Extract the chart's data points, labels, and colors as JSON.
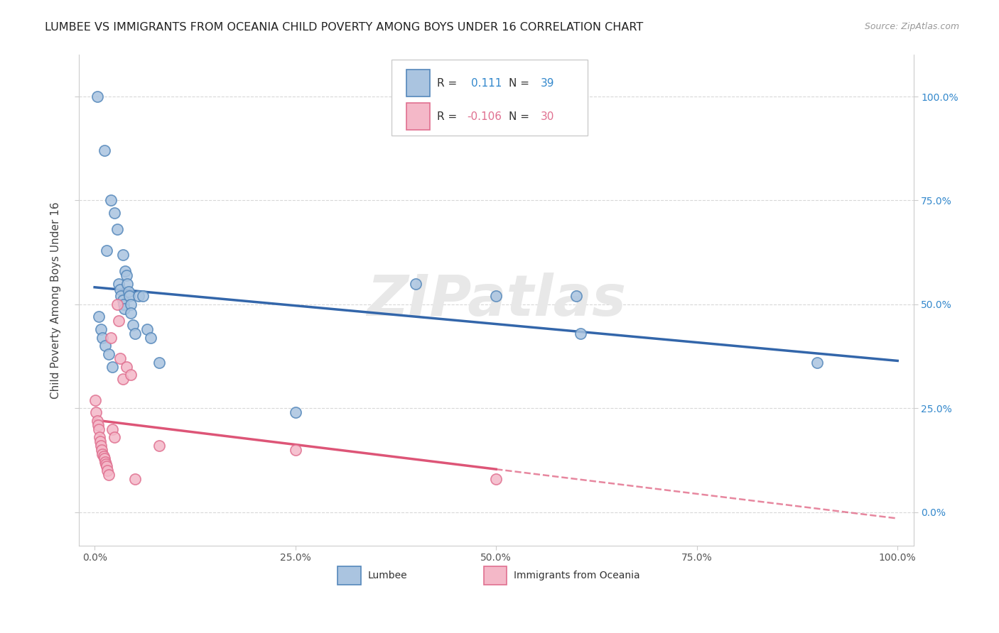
{
  "title": "LUMBEE VS IMMIGRANTS FROM OCEANIA CHILD POVERTY AMONG BOYS UNDER 16 CORRELATION CHART",
  "source": "Source: ZipAtlas.com",
  "ylabel": "Child Poverty Among Boys Under 16",
  "lumbee_R": 0.111,
  "lumbee_N": 39,
  "oceania_R": -0.106,
  "oceania_N": 30,
  "lumbee_color": "#aac4e0",
  "lumbee_edge_color": "#5588bb",
  "oceania_color": "#f4b8c8",
  "oceania_edge_color": "#e07090",
  "lumbee_line_color": "#3366aa",
  "oceania_line_color": "#dd5577",
  "watermark": "ZIPatlas",
  "lumbee_points": [
    [
      0.3,
      100.0
    ],
    [
      1.2,
      87.0
    ],
    [
      2.0,
      75.0
    ],
    [
      2.5,
      72.0
    ],
    [
      1.5,
      63.0
    ],
    [
      2.8,
      68.0
    ],
    [
      3.5,
      62.0
    ],
    [
      3.8,
      58.0
    ],
    [
      3.0,
      55.0
    ],
    [
      3.2,
      53.5
    ],
    [
      3.3,
      52.0
    ],
    [
      3.5,
      51.0
    ],
    [
      3.6,
      50.0
    ],
    [
      3.7,
      49.0
    ],
    [
      4.0,
      57.0
    ],
    [
      4.1,
      55.0
    ],
    [
      4.2,
      53.0
    ],
    [
      4.3,
      52.0
    ],
    [
      4.5,
      50.0
    ],
    [
      4.5,
      48.0
    ],
    [
      4.8,
      45.0
    ],
    [
      5.0,
      43.0
    ],
    [
      0.5,
      47.0
    ],
    [
      0.8,
      44.0
    ],
    [
      1.0,
      42.0
    ],
    [
      1.3,
      40.0
    ],
    [
      1.8,
      38.0
    ],
    [
      2.2,
      35.0
    ],
    [
      5.5,
      52.0
    ],
    [
      6.0,
      52.0
    ],
    [
      6.5,
      44.0
    ],
    [
      7.0,
      42.0
    ],
    [
      8.0,
      36.0
    ],
    [
      40.0,
      55.0
    ],
    [
      50.0,
      52.0
    ],
    [
      60.0,
      52.0
    ],
    [
      60.5,
      43.0
    ],
    [
      90.0,
      36.0
    ],
    [
      25.0,
      24.0
    ]
  ],
  "oceania_points": [
    [
      0.1,
      27.0
    ],
    [
      0.2,
      24.0
    ],
    [
      0.3,
      22.0
    ],
    [
      0.4,
      21.0
    ],
    [
      0.5,
      20.0
    ],
    [
      0.6,
      18.0
    ],
    [
      0.7,
      17.0
    ],
    [
      0.8,
      16.0
    ],
    [
      0.9,
      15.0
    ],
    [
      1.0,
      14.0
    ],
    [
      1.1,
      13.5
    ],
    [
      1.2,
      13.0
    ],
    [
      1.3,
      12.0
    ],
    [
      1.4,
      11.5
    ],
    [
      1.5,
      11.0
    ],
    [
      1.6,
      10.0
    ],
    [
      1.8,
      9.0
    ],
    [
      2.0,
      42.0
    ],
    [
      2.2,
      20.0
    ],
    [
      2.5,
      18.0
    ],
    [
      2.8,
      50.0
    ],
    [
      3.0,
      46.0
    ],
    [
      3.2,
      37.0
    ],
    [
      3.5,
      32.0
    ],
    [
      4.0,
      35.0
    ],
    [
      4.5,
      33.0
    ],
    [
      5.0,
      8.0
    ],
    [
      8.0,
      16.0
    ],
    [
      25.0,
      15.0
    ],
    [
      50.0,
      8.0
    ]
  ],
  "xlim": [
    -2.0,
    102.0
  ],
  "ylim": [
    -8.0,
    110.0
  ],
  "x_ticks": [
    0,
    25,
    50,
    75,
    100
  ],
  "x_tick_labels": [
    "0.0%",
    "25.0%",
    "50.0%",
    "75.0%",
    "100.0%"
  ],
  "y_ticks": [
    0,
    25,
    50,
    75,
    100
  ],
  "y_tick_labels": [
    "0.0%",
    "25.0%",
    "50.0%",
    "75.0%",
    "100.0%"
  ]
}
